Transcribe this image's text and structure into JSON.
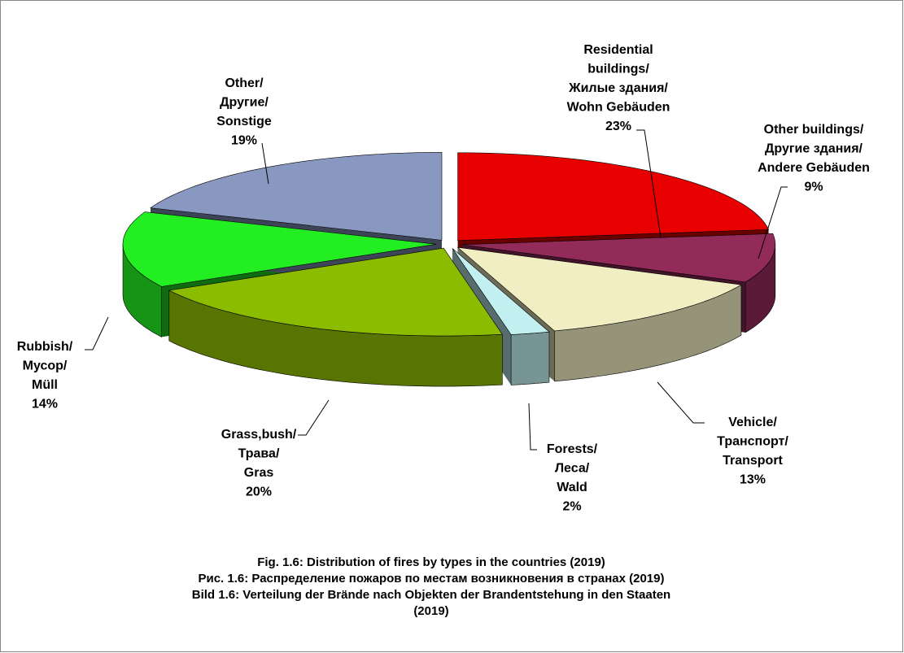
{
  "chart_data": {
    "type": "pie",
    "title": [
      "Fig. 1.6: Distribution of fires by types in the countries (2019)",
      "Рис. 1.6: Распределение пожаров по местам возникновения в странах (2019)",
      "Bild 1.6: Verteilung der Brände nach Objekten der Brandentstehung in den Staaten (2019)"
    ],
    "categories": [
      [
        "Residential",
        "buildings/",
        "Жилые здания/",
        "Wohn Gebäuden"
      ],
      [
        "Other buildings/",
        "Другие здания/",
        "Andere Gebäuden"
      ],
      [
        "Vehicle/",
        "Транспорт/",
        "Transport"
      ],
      [
        "Forests/",
        "Леса/",
        "Wald"
      ],
      [
        "Grass,bush/",
        "Трава/",
        "Gras"
      ],
      [
        "Rubbish/",
        "Мусор/",
        "Müll"
      ],
      [
        "Other/",
        "Другие/",
        "Sonstige"
      ]
    ],
    "values": [
      23,
      9,
      13,
      2,
      20,
      14,
      19
    ],
    "value_labels": [
      "23%",
      "9%",
      "13%",
      "2%",
      "20%",
      "14%",
      "19%"
    ],
    "colors": [
      "#e80000",
      "#922a5a",
      "#f0eec2",
      "#c2f0f0",
      "#8cbc00",
      "#22ee22",
      "#8898c0"
    ]
  }
}
